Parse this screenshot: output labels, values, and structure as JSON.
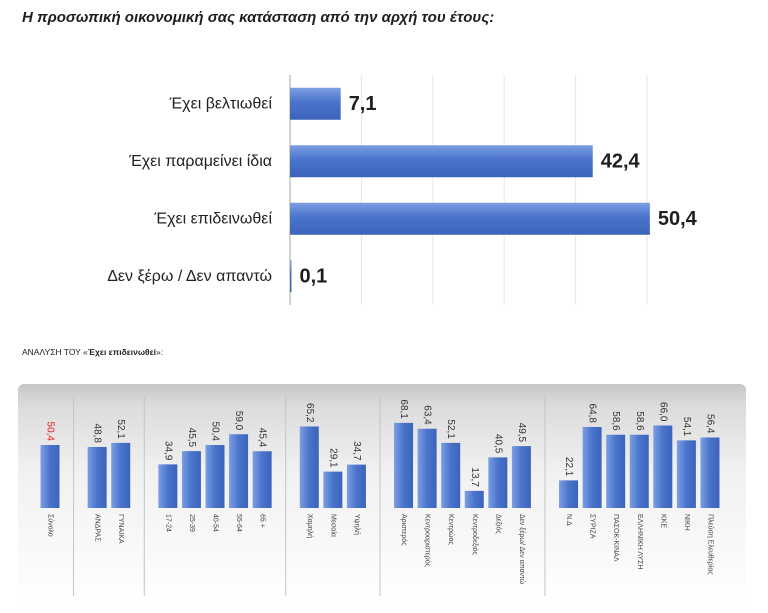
{
  "colors": {
    "bar_light": "#7c9ee3",
    "bar": "#4a74cb",
    "bar_dark": "#3b63b9",
    "value_text": "#333333",
    "value_highlight": "#e3211c"
  },
  "chart_data": [
    {
      "type": "bar",
      "orientation": "horizontal",
      "title": "Η προσωπική οικονομική σας κατάσταση από την αρχή του έτους:",
      "categories": [
        "Έχει βελτιωθεί",
        "Έχει παραμείνει ίδια",
        "Έχει επιδεινωθεί",
        "Δεν ξέρω / Δεν απαντώ"
      ],
      "values": [
        7.1,
        42.4,
        50.4,
        0.1
      ],
      "xlim": [
        0,
        50
      ],
      "grid": true
    },
    {
      "type": "bar",
      "orientation": "vertical",
      "title_prefix": "ΑΝΑΛΥΣΗ ΤΟΥ «",
      "title_emphasis": "Έχει επιδεινωθεί",
      "title_suffix": "»:",
      "ylim": [
        0,
        90
      ],
      "groups": [
        {
          "categories": [
            "Σύνολο"
          ],
          "values": [
            50.4
          ],
          "highlight": true
        },
        {
          "categories": [
            "ΑΝΔΡΑΣ",
            "ΓΥΝΑΙΚΑ"
          ],
          "values": [
            48.8,
            52.1
          ]
        },
        {
          "categories": [
            "17-24",
            "25-39",
            "40-54",
            "55-64",
            "65 +"
          ],
          "values": [
            34.9,
            45.5,
            50.4,
            59.0,
            45.4
          ]
        },
        {
          "categories": [
            "Χαμηλή",
            "Μεσαία",
            "Υψηλή"
          ],
          "values": [
            65.2,
            29.1,
            34.7
          ]
        },
        {
          "categories": [
            "Αριστερός",
            "Κεντροαριστερός",
            "Κεντρώος",
            "Κεντροδεξιός",
            "Δεξιός",
            "Δεν ξέρω/ Δεν απαντώ"
          ],
          "values": [
            68.1,
            63.4,
            52.1,
            13.7,
            40.5,
            49.5
          ]
        },
        {
          "categories": [
            "Ν.Δ",
            "ΣΥΡΙΖΑ",
            "ΠΑΣΟΚ-ΚΙΝΑΛ",
            "ΕΛΛΗΝΙΚΗ ΛΥΣΗ",
            "ΚΚΕ",
            "ΝΙΚΗ",
            "Πλεύση Ελευθερίας"
          ],
          "values": [
            22.1,
            64.8,
            58.6,
            58.6,
            66.0,
            54.1,
            56.4
          ]
        }
      ]
    }
  ]
}
